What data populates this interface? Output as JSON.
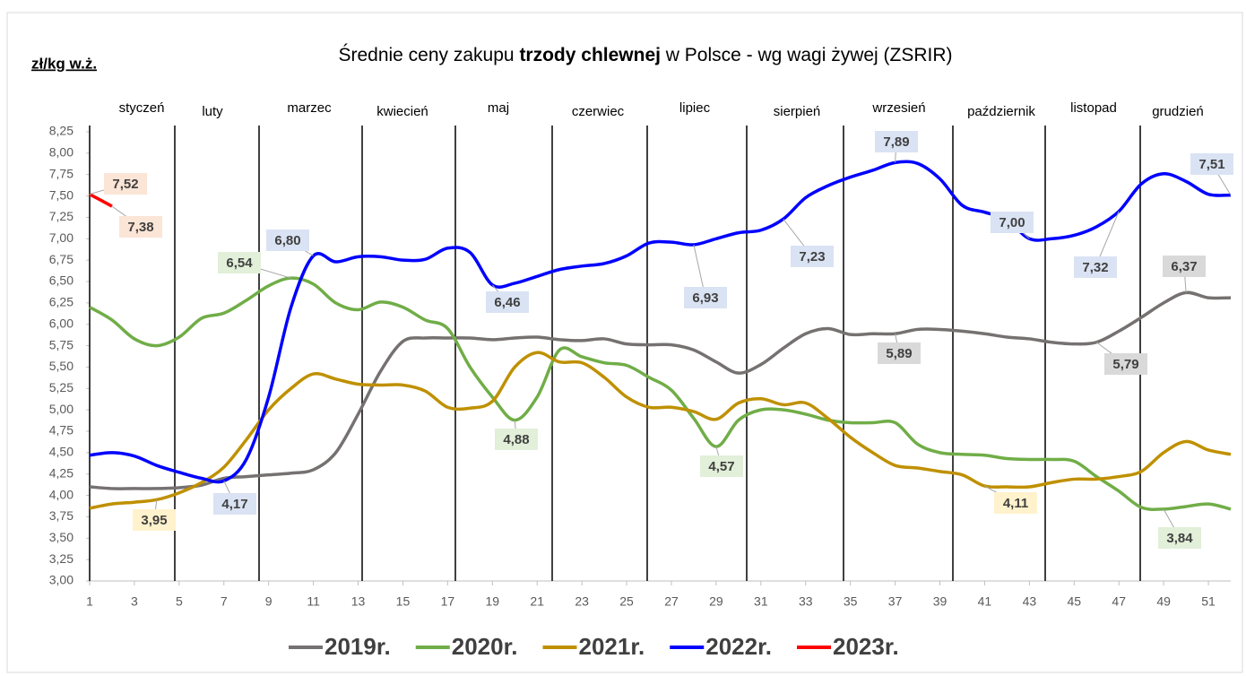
{
  "chart_data": {
    "type": "line",
    "title": [
      "Ś",
      "rednie ceny zakupu ",
      "trzody chlewnej",
      " w Polsce - wg wagi żywej (ZSRIR)"
    ],
    "y_axis_label": "zł/kg w.ż.",
    "months": [
      "styczeń",
      "luty",
      "marzec",
      "kwiecień",
      "maj",
      "czerwiec",
      "lipiec",
      "sierpień",
      "wrzesień",
      "październik",
      "listopad",
      "grudzień"
    ],
    "x": [
      1,
      2,
      3,
      4,
      5,
      6,
      7,
      8,
      9,
      10,
      11,
      12,
      13,
      14,
      15,
      16,
      17,
      18,
      19,
      20,
      21,
      22,
      23,
      24,
      25,
      26,
      27,
      28,
      29,
      30,
      31,
      32,
      33,
      34,
      35,
      36,
      37,
      38,
      39,
      40,
      41,
      42,
      43,
      44,
      45,
      46,
      47,
      48,
      49,
      50,
      51,
      52
    ],
    "xlim": [
      1,
      52
    ],
    "xticks": [
      1,
      3,
      5,
      7,
      9,
      11,
      13,
      15,
      17,
      19,
      21,
      23,
      25,
      27,
      29,
      31,
      33,
      35,
      37,
      39,
      41,
      43,
      45,
      47,
      49,
      51
    ],
    "ylim": [
      3,
      8.25
    ],
    "yticks": [
      {
        "value": 3,
        "label": "3,00"
      },
      {
        "value": 3.25,
        "label": "3,25"
      },
      {
        "value": 3.5,
        "label": "3,50"
      },
      {
        "value": 3.75,
        "label": "3,75"
      },
      {
        "value": 4,
        "label": "4,00"
      },
      {
        "value": 4.25,
        "label": "4,25"
      },
      {
        "value": 4.5,
        "label": "4,50"
      },
      {
        "value": 4.75,
        "label": "4,75"
      },
      {
        "value": 5,
        "label": "5,00"
      },
      {
        "value": 5.25,
        "label": "5,25"
      },
      {
        "value": 5.5,
        "label": "5,50"
      },
      {
        "value": 5.75,
        "label": "5,75"
      },
      {
        "value": 6,
        "label": "6,00"
      },
      {
        "value": 6.25,
        "label": "6,25"
      },
      {
        "value": 6.5,
        "label": "6,50"
      },
      {
        "value": 6.75,
        "label": "6,75"
      },
      {
        "value": 7,
        "label": "7,00"
      },
      {
        "value": 7.25,
        "label": "7,25"
      },
      {
        "value": 7.5,
        "label": "7,50"
      },
      {
        "value": 7.75,
        "label": "7,75"
      },
      {
        "value": 8,
        "label": "8,00"
      },
      {
        "value": 8.25,
        "label": "8,25"
      }
    ],
    "legend": "bottom",
    "series": [
      {
        "name": "2019r.",
        "color": "#767171",
        "label_bg": "#d9d9d9",
        "values": [
          4.1,
          4.08,
          4.08,
          4.08,
          4.09,
          4.12,
          4.2,
          4.22,
          4.24,
          4.26,
          4.3,
          4.5,
          4.95,
          5.45,
          5.8,
          5.84,
          5.84,
          5.84,
          5.82,
          5.84,
          5.85,
          5.82,
          5.81,
          5.83,
          5.77,
          5.76,
          5.76,
          5.7,
          5.56,
          5.43,
          5.53,
          5.72,
          5.89,
          5.95,
          5.88,
          5.89,
          5.89,
          5.94,
          5.94,
          5.92,
          5.89,
          5.85,
          5.83,
          5.79,
          5.77,
          5.79,
          5.92,
          6.08,
          6.25,
          6.37,
          6.31,
          6.31
        ],
        "value_labels": [
          null,
          null,
          null,
          null,
          null,
          null,
          null,
          null,
          null,
          null,
          null,
          null,
          null,
          null,
          null,
          null,
          null,
          null,
          null,
          null,
          null,
          null,
          null,
          null,
          null,
          null,
          null,
          null,
          null,
          null,
          null,
          null,
          null,
          null,
          null,
          null,
          "5,89",
          null,
          null,
          null,
          null,
          null,
          null,
          null,
          null,
          "5,79",
          null,
          null,
          null,
          "6,37",
          null,
          null
        ]
      },
      {
        "name": "2020r.",
        "color": "#70ad47",
        "label_bg": "#e2efd9",
        "values": [
          6.2,
          6.05,
          5.83,
          5.75,
          5.85,
          6.07,
          6.13,
          6.28,
          6.45,
          6.54,
          6.47,
          6.25,
          6.17,
          6.26,
          6.2,
          6.05,
          5.95,
          5.5,
          5.15,
          4.88,
          5.15,
          5.7,
          5.62,
          5.55,
          5.52,
          5.38,
          5.23,
          4.9,
          4.57,
          4.88,
          5.0,
          5.0,
          4.95,
          4.88,
          4.85,
          4.85,
          4.85,
          4.6,
          4.5,
          4.48,
          4.47,
          4.43,
          4.42,
          4.42,
          4.4,
          4.22,
          4.05,
          3.86,
          3.84,
          3.87,
          3.9,
          3.84
        ],
        "value_labels": [
          null,
          null,
          null,
          null,
          null,
          null,
          null,
          null,
          null,
          "6,54",
          null,
          null,
          null,
          null,
          null,
          null,
          null,
          null,
          null,
          "4,88",
          null,
          null,
          null,
          null,
          null,
          null,
          null,
          null,
          "4,57",
          null,
          null,
          null,
          null,
          null,
          null,
          null,
          null,
          null,
          null,
          null,
          null,
          null,
          null,
          null,
          null,
          null,
          null,
          null,
          "3,84",
          null,
          null,
          null
        ]
      },
      {
        "name": "2021r.",
        "color": "#bf9000",
        "label_bg": "#fff2cc",
        "values": [
          3.85,
          3.9,
          3.92,
          3.95,
          4.03,
          4.15,
          4.33,
          4.65,
          5.0,
          5.25,
          5.42,
          5.36,
          5.3,
          5.29,
          5.29,
          5.22,
          5.03,
          5.02,
          5.1,
          5.5,
          5.67,
          5.56,
          5.55,
          5.38,
          5.15,
          5.03,
          5.03,
          4.98,
          4.89,
          5.08,
          5.13,
          5.06,
          5.08,
          4.9,
          4.68,
          4.5,
          4.35,
          4.32,
          4.28,
          4.24,
          4.11,
          4.1,
          4.1,
          4.15,
          4.19,
          4.19,
          4.22,
          4.28,
          4.5,
          4.63,
          4.53,
          4.48
        ],
        "value_labels": [
          null,
          null,
          null,
          "3,95",
          null,
          null,
          null,
          null,
          null,
          null,
          null,
          null,
          null,
          null,
          null,
          null,
          null,
          null,
          null,
          null,
          null,
          null,
          null,
          null,
          null,
          null,
          null,
          null,
          null,
          null,
          null,
          null,
          null,
          null,
          null,
          null,
          null,
          null,
          null,
          null,
          "4,11",
          null,
          null,
          null,
          null,
          null,
          null,
          null,
          null,
          null,
          null,
          null
        ]
      },
      {
        "name": "2022r.",
        "color": "#0000ff",
        "label_bg": "#dae3f3",
        "values": [
          4.47,
          4.5,
          4.46,
          4.35,
          4.27,
          4.2,
          4.17,
          4.42,
          5.15,
          6.2,
          6.8,
          6.73,
          6.79,
          6.79,
          6.75,
          6.76,
          6.89,
          6.84,
          6.46,
          6.48,
          6.56,
          6.64,
          6.68,
          6.71,
          6.8,
          6.95,
          6.96,
          6.93,
          7.0,
          7.07,
          7.1,
          7.23,
          7.48,
          7.62,
          7.72,
          7.8,
          7.89,
          7.88,
          7.7,
          7.39,
          7.31,
          7.22,
          7.0,
          7.0,
          7.04,
          7.14,
          7.32,
          7.64,
          7.76,
          7.67,
          7.52,
          7.51
        ],
        "value_labels": [
          null,
          null,
          null,
          null,
          null,
          null,
          "4,17",
          null,
          null,
          null,
          "6,80",
          null,
          null,
          null,
          null,
          null,
          null,
          null,
          "6,46",
          null,
          null,
          null,
          null,
          null,
          null,
          null,
          null,
          "6,93",
          null,
          null,
          null,
          "7,23",
          null,
          null,
          null,
          null,
          "7,89",
          null,
          null,
          null,
          null,
          null,
          "7,00",
          null,
          null,
          null,
          "7,32",
          null,
          null,
          null,
          null,
          "7,51"
        ]
      },
      {
        "name": "2023r.",
        "color": "#ff0000",
        "label_bg": "#fbe5d6",
        "values": [
          7.52,
          7.38,
          null,
          null,
          null,
          null,
          null,
          null,
          null,
          null,
          null,
          null,
          null,
          null,
          null,
          null,
          null,
          null,
          null,
          null,
          null,
          null,
          null,
          null,
          null,
          null,
          null,
          null,
          null,
          null,
          null,
          null,
          null,
          null,
          null,
          null,
          null,
          null,
          null,
          null,
          null,
          null,
          null,
          null,
          null,
          null,
          null,
          null,
          null,
          null,
          null,
          null
        ],
        "value_labels": [
          "7,52",
          "7,38",
          null,
          null,
          null,
          null,
          null,
          null,
          null,
          null,
          null,
          null,
          null,
          null,
          null,
          null,
          null,
          null,
          null,
          null,
          null,
          null,
          null,
          null,
          null,
          null,
          null,
          null,
          null,
          null,
          null,
          null,
          null,
          null,
          null,
          null,
          null,
          null,
          null,
          null,
          null,
          null,
          null,
          null,
          null,
          null,
          null,
          null,
          null,
          null,
          null,
          null
        ]
      }
    ]
  }
}
